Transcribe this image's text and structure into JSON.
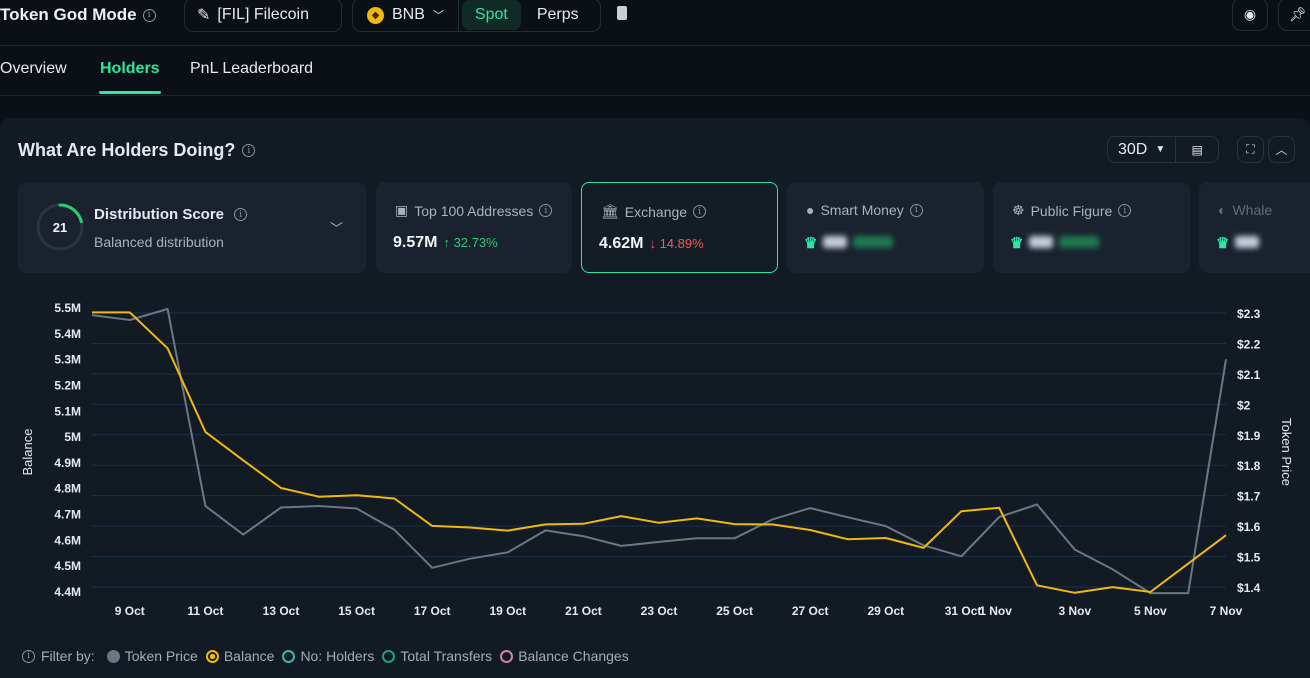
{
  "header": {
    "title": "Token God Mode",
    "token": "[FIL] Filecoin",
    "chain": "BNB",
    "market_modes": [
      "Spot",
      "Perps"
    ],
    "active_mode": "Spot"
  },
  "tabs": [
    {
      "label": "Overview",
      "active": false
    },
    {
      "label": "Holders",
      "active": true
    },
    {
      "label": "PnL Leaderboard",
      "active": false
    }
  ],
  "panel": {
    "title": "What Are Holders Doing?",
    "range": "30D"
  },
  "cards": {
    "distribution": {
      "score": "21",
      "score_value": 21,
      "title": "Distribution Score",
      "subtitle": "Balanced distribution"
    },
    "top100": {
      "label": "Top 100 Addresses",
      "value": "9.57M",
      "change": "↑ 32.73%"
    },
    "exchange": {
      "label": "Exchange",
      "value": "4.62M",
      "change": "↓ 14.89%"
    },
    "smart_money": {
      "label": "Smart Money"
    },
    "public_figure": {
      "label": "Public Figure"
    },
    "whale": {
      "label": "Whale"
    }
  },
  "colors": {
    "accent": "#2ee6a0",
    "balance": "#f0b90b",
    "price": "#6b7785",
    "up": "#2ecc71",
    "down": "#ef5a5a"
  },
  "legend": {
    "filter_label": "Filter by:",
    "items": [
      {
        "label": "Token Price",
        "color": "#6b7785",
        "active": true
      },
      {
        "label": "Balance",
        "color": "#f0b90b",
        "active": true
      },
      {
        "label": "No: Holders",
        "color": "#3bb8a6",
        "active": false
      },
      {
        "label": "Total Transfers",
        "color": "#1f9e86",
        "active": false
      },
      {
        "label": "Balance Changes",
        "color": "#d77fb0",
        "active": false
      }
    ]
  },
  "chart_data": {
    "type": "line",
    "ylabel": "Balance",
    "y2label": "Token Price",
    "x": [
      "8 Oct",
      "9 Oct",
      "10 Oct",
      "11 Oct",
      "12 Oct",
      "13 Oct",
      "14 Oct",
      "15 Oct",
      "16 Oct",
      "17 Oct",
      "18 Oct",
      "19 Oct",
      "20 Oct",
      "21 Oct",
      "22 Oct",
      "23 Oct",
      "24 Oct",
      "25 Oct",
      "26 Oct",
      "27 Oct",
      "28 Oct",
      "29 Oct",
      "30 Oct",
      "31 Oct",
      "1 Nov",
      "2 Nov",
      "3 Nov",
      "4 Nov",
      "5 Nov",
      "6 Nov",
      "7 Nov"
    ],
    "xticks": [
      "9 Oct",
      "11 Oct",
      "13 Oct",
      "15 Oct",
      "17 Oct",
      "19 Oct",
      "21 Oct",
      "23 Oct",
      "25 Oct",
      "27 Oct",
      "29 Oct",
      "31 Oct",
      "1 Nov",
      "3 Nov",
      "5 Nov",
      "7 Nov"
    ],
    "yticks": [
      "5.5M",
      "5.4M",
      "5.3M",
      "5.2M",
      "5.1M",
      "5M",
      "4.9M",
      "4.8M",
      "4.7M",
      "4.6M",
      "4.5M",
      "4.4M"
    ],
    "y2ticks": [
      "$2.3",
      "$2.2",
      "$2.1",
      "$2",
      "$1.9",
      "$1.8",
      "$1.7",
      "$1.6",
      "$1.5",
      "$1.4"
    ],
    "ylim": [
      4.4,
      5.5
    ],
    "y2lim": [
      1.4,
      2.3
    ],
    "grid": true,
    "series": [
      {
        "name": "Balance",
        "axis": "left",
        "unit": "M",
        "values": [
          5.483,
          5.483,
          5.344,
          5.02,
          4.91,
          4.803,
          4.769,
          4.775,
          4.762,
          4.656,
          4.65,
          4.638,
          4.662,
          4.664,
          4.694,
          4.668,
          4.685,
          4.663,
          4.662,
          4.64,
          4.604,
          4.609,
          4.571,
          4.713,
          4.726,
          4.426,
          4.397,
          4.419,
          4.4,
          4.51,
          4.62
        ]
      },
      {
        "name": "Token Price",
        "axis": "right",
        "unit": "$",
        "values": [
          2.293,
          2.277,
          2.313,
          1.666,
          1.572,
          1.661,
          1.666,
          1.658,
          1.588,
          1.463,
          1.493,
          1.514,
          1.586,
          1.567,
          1.535,
          1.548,
          1.56,
          1.56,
          1.622,
          1.659,
          1.629,
          1.6,
          1.537,
          1.501,
          1.63,
          1.671,
          1.523,
          1.458,
          1.38,
          1.38,
          2.148
        ]
      }
    ]
  }
}
